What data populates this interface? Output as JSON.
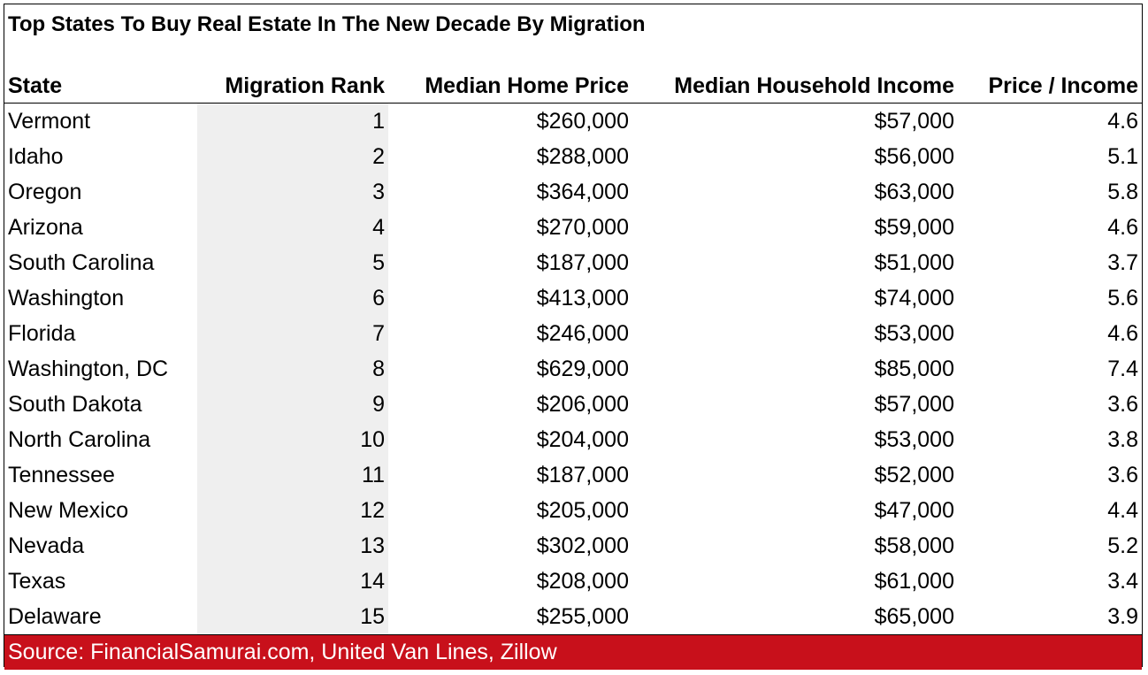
{
  "title": "Top States To Buy Real Estate In The New Decade By Migration",
  "headers": {
    "state": "State",
    "rank": "Migration Rank",
    "price": "Median Home Price",
    "income": "Median Household Income",
    "ratio": "Price / Income"
  },
  "rows": [
    {
      "state": "Vermont",
      "rank": "1",
      "price": "$260,000",
      "income": "$57,000",
      "ratio": "4.6"
    },
    {
      "state": "Idaho",
      "rank": "2",
      "price": "$288,000",
      "income": "$56,000",
      "ratio": "5.1"
    },
    {
      "state": "Oregon",
      "rank": "3",
      "price": "$364,000",
      "income": "$63,000",
      "ratio": "5.8"
    },
    {
      "state": "Arizona",
      "rank": "4",
      "price": "$270,000",
      "income": "$59,000",
      "ratio": "4.6"
    },
    {
      "state": "South Carolina",
      "rank": "5",
      "price": "$187,000",
      "income": "$51,000",
      "ratio": "3.7"
    },
    {
      "state": "Washington",
      "rank": "6",
      "price": "$413,000",
      "income": "$74,000",
      "ratio": "5.6"
    },
    {
      "state": "Florida",
      "rank": "7",
      "price": "$246,000",
      "income": "$53,000",
      "ratio": "4.6"
    },
    {
      "state": "Washington, DC",
      "rank": "8",
      "price": "$629,000",
      "income": "$85,000",
      "ratio": "7.4"
    },
    {
      "state": "South Dakota",
      "rank": "9",
      "price": "$206,000",
      "income": "$57,000",
      "ratio": "3.6"
    },
    {
      "state": "North Carolina",
      "rank": "10",
      "price": "$204,000",
      "income": "$53,000",
      "ratio": "3.8"
    },
    {
      "state": "Tennessee",
      "rank": "11",
      "price": "$187,000",
      "income": "$52,000",
      "ratio": "3.6"
    },
    {
      "state": "New Mexico",
      "rank": "12",
      "price": "$205,000",
      "income": "$47,000",
      "ratio": "4.4"
    },
    {
      "state": "Nevada",
      "rank": "13",
      "price": "$302,000",
      "income": "$58,000",
      "ratio": "5.2"
    },
    {
      "state": "Texas",
      "rank": "14",
      "price": "$208,000",
      "income": "$61,000",
      "ratio": "3.4"
    },
    {
      "state": "Delaware",
      "rank": "15",
      "price": "$255,000",
      "income": "$65,000",
      "ratio": "3.9"
    }
  ],
  "source": "Source: FinancialSamurai.com, United Van Lines, Zillow",
  "colors": {
    "source_bar": "#c8101b",
    "source_text": "#ffffff",
    "rank_column_fill": "#efefef"
  }
}
